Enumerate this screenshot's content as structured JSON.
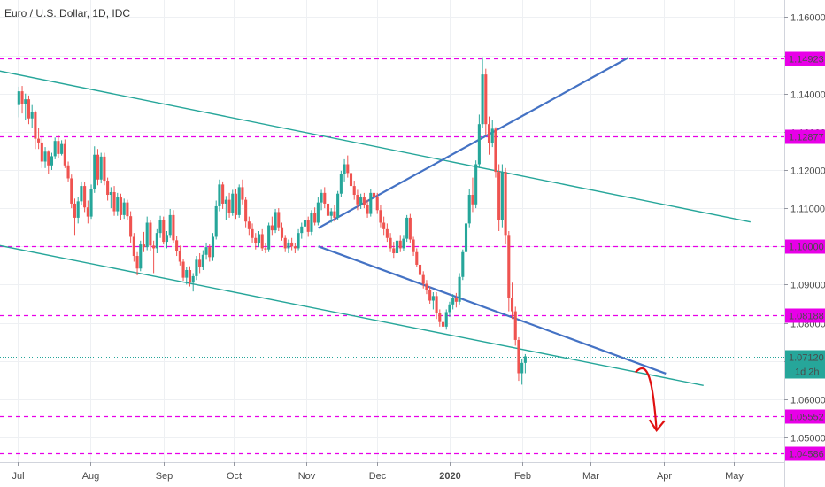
{
  "chart_data": {
    "type": "candlestick",
    "title": "Euro / U.S. Dollar, 1D, IDC",
    "x_tick_labels": [
      "Jul",
      "Aug",
      "Sep",
      "Oct",
      "Nov",
      "Dec",
      "2020",
      "Feb",
      "Mar",
      "Apr",
      "May"
    ],
    "x_tick_days": [
      0,
      31,
      62,
      92,
      123,
      153,
      184,
      215,
      244,
      275,
      305
    ],
    "y_tick_labels": [
      "1.16000",
      "1.15000",
      "1.14000",
      "1.13000",
      "1.12000",
      "1.11000",
      "1.10000",
      "1.09000",
      "1.08000",
      "1.07000",
      "1.06000",
      "1.05000"
    ],
    "y_ticks": [
      1.16,
      1.15,
      1.14,
      1.13,
      1.12,
      1.11,
      1.1,
      1.09,
      1.08,
      1.07,
      1.06,
      1.05
    ],
    "ylim": [
      1.0435,
      1.1645
    ],
    "grid": true,
    "horizontal_levels": [
      {
        "value": 1.14923,
        "label": "1.14923"
      },
      {
        "value": 1.12877,
        "label": "1.12877"
      },
      {
        "value": 1.1,
        "label": "1.10000"
      },
      {
        "value": 1.08188,
        "label": "1.08188"
      },
      {
        "value": 1.05552,
        "label": "1.05552"
      },
      {
        "value": 1.04586,
        "label": "1.04586"
      }
    ],
    "current_price": {
      "value": 1.0712,
      "label": "1.07120",
      "countdown": "1d 2h"
    },
    "trendlines": [
      {
        "name": "channel-upper",
        "color": "#26a69a",
        "points": [
          {
            "day": -10,
            "price": 1.1462
          },
          {
            "day": 312,
            "price": 1.1064
          }
        ]
      },
      {
        "name": "channel-lower",
        "color": "#26a69a",
        "points": [
          {
            "day": -10,
            "price": 1.1005
          },
          {
            "day": 292,
            "price": 1.0636
          }
        ]
      },
      {
        "name": "wedge-upper",
        "color": "#4472c4",
        "points": [
          {
            "day": 128,
            "price": 1.1048
          },
          {
            "day": 260,
            "price": 1.1494
          }
        ]
      },
      {
        "name": "wedge-lower",
        "color": "#4472c4",
        "points": [
          {
            "day": 128,
            "price": 1.1
          },
          {
            "day": 276,
            "price": 1.0667
          }
        ]
      }
    ],
    "projection_arrow": {
      "color": "#e01010",
      "from": {
        "day": 263,
        "price": 1.067
      },
      "to": {
        "day": 272,
        "price": 1.0518
      }
    },
    "candles": [
      [
        1.137,
        1.1418,
        1.1338,
        1.1406
      ],
      [
        1.1406,
        1.142,
        1.1348,
        1.1372
      ],
      [
        1.1372,
        1.14,
        1.133,
        1.1385
      ],
      [
        1.1385,
        1.1395,
        1.132,
        1.1335
      ],
      [
        1.1335,
        1.137,
        1.131,
        1.1352
      ],
      [
        1.1352,
        1.1356,
        1.1255,
        1.1282
      ],
      [
        1.1282,
        1.131,
        1.1255,
        1.1272
      ],
      [
        1.1272,
        1.1285,
        1.1205,
        1.1222
      ],
      [
        1.1222,
        1.126,
        1.1205,
        1.1248
      ],
      [
        1.1248,
        1.1252,
        1.119,
        1.1212
      ],
      [
        1.1212,
        1.1245,
        1.12,
        1.1236
      ],
      [
        1.1236,
        1.1285,
        1.1228,
        1.1276
      ],
      [
        1.1276,
        1.129,
        1.1232,
        1.1242
      ],
      [
        1.1242,
        1.1278,
        1.1238,
        1.1268
      ],
      [
        1.1268,
        1.128,
        1.1205,
        1.1212
      ],
      [
        1.1212,
        1.1222,
        1.117,
        1.1178
      ],
      [
        1.1178,
        1.1188,
        1.11,
        1.1112
      ],
      [
        1.1112,
        1.1125,
        1.103,
        1.1075
      ],
      [
        1.1075,
        1.113,
        1.106,
        1.1118
      ],
      [
        1.1118,
        1.117,
        1.1108,
        1.1158
      ],
      [
        1.1158,
        1.1168,
        1.109,
        1.1102
      ],
      [
        1.1102,
        1.112,
        1.106,
        1.1078
      ],
      [
        1.1078,
        1.1162,
        1.1072,
        1.115
      ],
      [
        1.115,
        1.1262,
        1.114,
        1.124
      ],
      [
        1.124,
        1.1255,
        1.116,
        1.1175
      ],
      [
        1.1175,
        1.1245,
        1.1165,
        1.1235
      ],
      [
        1.1235,
        1.1245,
        1.116,
        1.1172
      ],
      [
        1.1172,
        1.118,
        1.112,
        1.1135
      ],
      [
        1.1135,
        1.1155,
        1.11,
        1.1142
      ],
      [
        1.1142,
        1.1158,
        1.108,
        1.1092
      ],
      [
        1.1092,
        1.114,
        1.108,
        1.1128
      ],
      [
        1.1128,
        1.1138,
        1.107,
        1.1082
      ],
      [
        1.1082,
        1.1125,
        1.1072,
        1.1115
      ],
      [
        1.1115,
        1.1122,
        1.1068,
        1.1079
      ],
      [
        1.1079,
        1.1092,
        1.101,
        1.1025
      ],
      [
        1.1025,
        1.1035,
        1.096,
        1.0975
      ],
      [
        1.0975,
        1.0985,
        1.0924,
        1.0942
      ],
      [
        1.0942,
        1.1015,
        1.0935,
        1.1005
      ],
      [
        1.1005,
        1.1038,
        1.0985,
        1.0998
      ],
      [
        1.0998,
        1.1078,
        1.099,
        1.1062
      ],
      [
        1.1062,
        1.1068,
        1.0988,
        1.1002
      ],
      [
        1.1002,
        1.1015,
        1.093,
        1.0995
      ],
      [
        1.0995,
        1.1045,
        1.0982,
        1.1035
      ],
      [
        1.1035,
        1.108,
        1.1022,
        1.107
      ],
      [
        1.107,
        1.1078,
        1.1005,
        1.1012
      ],
      [
        1.1012,
        1.104,
        1.0995,
        1.103
      ],
      [
        1.103,
        1.1098,
        1.1022,
        1.1082
      ],
      [
        1.1082,
        1.1095,
        1.1008,
        1.1016
      ],
      [
        1.1016,
        1.1028,
        1.0975,
        1.0988
      ],
      [
        1.0988,
        1.1002,
        1.095,
        1.096
      ],
      [
        1.096,
        1.0968,
        1.091,
        1.0918
      ],
      [
        1.0918,
        1.0945,
        1.09,
        1.0938
      ],
      [
        1.0938,
        1.0948,
        1.0895,
        1.0905
      ],
      [
        1.0905,
        1.093,
        1.0882,
        1.0922
      ],
      [
        1.0922,
        1.0975,
        1.0912,
        1.0965
      ],
      [
        1.0965,
        1.0982,
        1.093,
        1.0945
      ],
      [
        1.0945,
        1.099,
        1.0938,
        1.0978
      ],
      [
        1.0978,
        1.101,
        1.0965,
        1.0998
      ],
      [
        1.0998,
        1.1005,
        1.096,
        1.0972
      ],
      [
        1.0972,
        1.1035,
        1.0962,
        1.1025
      ],
      [
        1.1025,
        1.112,
        1.1018,
        1.1105
      ],
      [
        1.1105,
        1.1175,
        1.1092,
        1.1162
      ],
      [
        1.1162,
        1.117,
        1.1098,
        1.1112
      ],
      [
        1.1112,
        1.1132,
        1.107,
        1.1122
      ],
      [
        1.1122,
        1.114,
        1.1075,
        1.1088
      ],
      [
        1.1088,
        1.1148,
        1.108,
        1.1138
      ],
      [
        1.1138,
        1.115,
        1.1072,
        1.1082
      ],
      [
        1.1082,
        1.1162,
        1.1075,
        1.1155
      ],
      [
        1.1155,
        1.1175,
        1.111,
        1.1122
      ],
      [
        1.1122,
        1.113,
        1.105,
        1.1065
      ],
      [
        1.1065,
        1.1078,
        1.103,
        1.1045
      ],
      [
        1.1045,
        1.106,
        1.101,
        1.1022
      ],
      [
        1.1022,
        1.1035,
        1.0992,
        1.1008
      ],
      [
        1.1008,
        1.104,
        1.0998,
        1.1032
      ],
      [
        1.1032,
        1.1045,
        1.0988,
        1.0995
      ],
      [
        1.0995,
        1.1008,
        1.0982,
        1.0992
      ],
      [
        1.0992,
        1.1062,
        1.0985,
        1.1055
      ],
      [
        1.1055,
        1.1078,
        1.103,
        1.1042
      ],
      [
        1.1042,
        1.1098,
        1.1035,
        1.109
      ],
      [
        1.109,
        1.11,
        1.104,
        1.105
      ],
      [
        1.105,
        1.1062,
        1.1015,
        1.1022
      ],
      [
        1.1022,
        1.103,
        1.0985,
        1.0995
      ],
      [
        1.0995,
        1.1018,
        1.0982,
        1.101
      ],
      [
        1.101,
        1.1022,
        1.099,
        1.1
      ],
      [
        1.1,
        1.1008,
        1.0982,
        1.0995
      ],
      [
        1.0995,
        1.1045,
        1.099,
        1.1035
      ],
      [
        1.1035,
        1.1062,
        1.102,
        1.1052
      ],
      [
        1.1052,
        1.108,
        1.1035,
        1.107
      ],
      [
        1.107,
        1.1078,
        1.1025,
        1.1038
      ],
      [
        1.1038,
        1.1095,
        1.103,
        1.1088
      ],
      [
        1.1088,
        1.1102,
        1.1055,
        1.1062
      ],
      [
        1.1062,
        1.1128,
        1.1055,
        1.1115
      ],
      [
        1.1115,
        1.1148,
        1.1095,
        1.114
      ],
      [
        1.114,
        1.1155,
        1.11,
        1.1112
      ],
      [
        1.1112,
        1.112,
        1.107,
        1.108
      ],
      [
        1.108,
        1.11,
        1.1062,
        1.1092
      ],
      [
        1.1092,
        1.1108,
        1.1065,
        1.1075
      ],
      [
        1.1075,
        1.1145,
        1.107,
        1.1138
      ],
      [
        1.1138,
        1.1198,
        1.113,
        1.119
      ],
      [
        1.119,
        1.1228,
        1.117,
        1.1215
      ],
      [
        1.1215,
        1.1238,
        1.118,
        1.1192
      ],
      [
        1.1192,
        1.1205,
        1.1145,
        1.1158
      ],
      [
        1.1158,
        1.1172,
        1.1122,
        1.1135
      ],
      [
        1.1135,
        1.1148,
        1.1095,
        1.111
      ],
      [
        1.111,
        1.1138,
        1.1098,
        1.1128
      ],
      [
        1.1128,
        1.114,
        1.11,
        1.1108
      ],
      [
        1.1108,
        1.1122,
        1.1075,
        1.1085
      ],
      [
        1.1085,
        1.115,
        1.1078,
        1.114
      ],
      [
        1.114,
        1.1168,
        1.112,
        1.113
      ],
      [
        1.113,
        1.114,
        1.1085,
        1.1095
      ],
      [
        1.1095,
        1.1108,
        1.105,
        1.1062
      ],
      [
        1.1062,
        1.1078,
        1.103,
        1.1045
      ],
      [
        1.1045,
        1.106,
        1.1012,
        1.1022
      ],
      [
        1.1022,
        1.1035,
        1.0985,
        1.0995
      ],
      [
        1.0995,
        1.1012,
        1.097,
        1.0982
      ],
      [
        1.0982,
        1.1022,
        1.0975,
        1.1015
      ],
      [
        1.1015,
        1.103,
        1.0985,
        1.0995
      ],
      [
        1.0995,
        1.103,
        1.0988,
        1.102
      ],
      [
        1.102,
        1.1082,
        1.1012,
        1.1075
      ],
      [
        1.1075,
        1.1085,
        1.101,
        1.1018
      ],
      [
        1.1018,
        1.1025,
        1.0975,
        1.0985
      ],
      [
        1.0985,
        1.0995,
        1.0945,
        1.0952
      ],
      [
        1.0952,
        1.0962,
        1.0915,
        1.0925
      ],
      [
        1.0925,
        1.0935,
        1.089,
        1.0902
      ],
      [
        1.0902,
        1.0912,
        1.0875,
        1.0885
      ],
      [
        1.0885,
        1.0895,
        1.085,
        1.0858
      ],
      [
        1.0858,
        1.088,
        1.0835,
        1.087
      ],
      [
        1.087,
        1.088,
        1.081,
        1.0825
      ],
      [
        1.0825,
        1.0835,
        1.079,
        1.0802
      ],
      [
        1.0802,
        1.0812,
        1.0778,
        1.079
      ],
      [
        1.079,
        1.0835,
        1.0782,
        1.0828
      ],
      [
        1.0828,
        1.0855,
        1.0815,
        1.0848
      ],
      [
        1.0848,
        1.0875,
        1.0835,
        1.0865
      ],
      [
        1.0865,
        1.0878,
        1.084,
        1.0855
      ],
      [
        1.0855,
        1.093,
        1.0848,
        1.092
      ],
      [
        1.092,
        1.0992,
        1.0912,
        1.0985
      ],
      [
        1.0985,
        1.107,
        1.0975,
        1.106
      ],
      [
        1.106,
        1.115,
        1.105,
        1.1135
      ],
      [
        1.1135,
        1.118,
        1.109,
        1.111
      ],
      [
        1.111,
        1.1225,
        1.11,
        1.1215
      ],
      [
        1.1215,
        1.1345,
        1.1205,
        1.132
      ],
      [
        1.132,
        1.1495,
        1.131,
        1.145
      ],
      [
        1.145,
        1.1465,
        1.129,
        1.132
      ],
      [
        1.132,
        1.134,
        1.124,
        1.127
      ],
      [
        1.127,
        1.133,
        1.126,
        1.1308
      ],
      [
        1.1308,
        1.1312,
        1.118,
        1.1195
      ],
      [
        1.1195,
        1.1215,
        1.104,
        1.107
      ],
      [
        1.107,
        1.1215,
        1.105,
        1.1195
      ],
      [
        1.1195,
        1.1205,
        1.1005,
        1.103
      ],
      [
        1.103,
        1.104,
        1.083,
        1.0865
      ],
      [
        1.0865,
        1.0905,
        1.081,
        1.083
      ],
      [
        1.083,
        1.0842,
        1.074,
        1.0755
      ],
      [
        1.0755,
        1.0762,
        1.0648,
        1.0668
      ],
      [
        1.0668,
        1.0705,
        1.0638,
        1.0695
      ],
      [
        1.0695,
        1.0718,
        1.0668,
        1.0712
      ]
    ]
  }
}
